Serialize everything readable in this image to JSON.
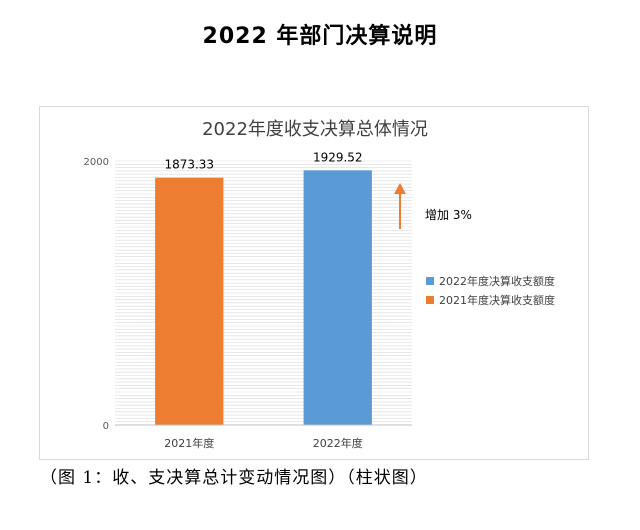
{
  "page": {
    "title": "2022 年部门决算说明",
    "caption": "（图 1：收、支决算总计变动情况图）（柱状图）"
  },
  "chart_data": {
    "type": "bar",
    "title": "2022年度收支决算总体情况",
    "categories": [
      "2021年度",
      "2022年度"
    ],
    "values": [
      1873.33,
      1929.52
    ],
    "value_labels": [
      "1873.33",
      "1929.52"
    ],
    "bar_colors": [
      "#ED7D31",
      "#5B9BD5"
    ],
    "series": [
      {
        "name": "2022年度决算收支额度",
        "color": "#5B9BD5"
      },
      {
        "name": "2021年度决算收支额度",
        "color": "#ED7D31"
      }
    ],
    "ylim": [
      0,
      2000
    ],
    "y_ticks": [
      0,
      2000
    ],
    "grid": true,
    "legend": "right",
    "annotation": {
      "text": "增加 3%",
      "arrow": "up",
      "color": "#ED7D31"
    },
    "xlabel": "",
    "ylabel": ""
  }
}
